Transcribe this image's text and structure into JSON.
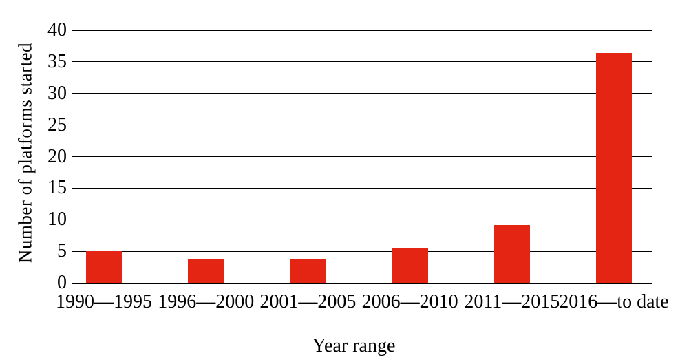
{
  "chart_data": {
    "type": "bar",
    "title": "",
    "xlabel": "Year range",
    "ylabel": "Number of platforms started",
    "categories": [
      "1990—1995",
      "1996—2000",
      "2001—2005",
      "2006—2010",
      "2011—2015",
      "2016—to date"
    ],
    "values": [
      5.0,
      3.7,
      3.7,
      5.4,
      9.2,
      36.4
    ],
    "ylim": [
      0,
      40
    ],
    "yticks": [
      0,
      5,
      10,
      15,
      20,
      25,
      30,
      35,
      40
    ],
    "grid": true,
    "legend": "none",
    "bar_color": "#e42513",
    "gridline_color": "#000000",
    "text_color": "#000000",
    "background_color": "#ffffff"
  }
}
